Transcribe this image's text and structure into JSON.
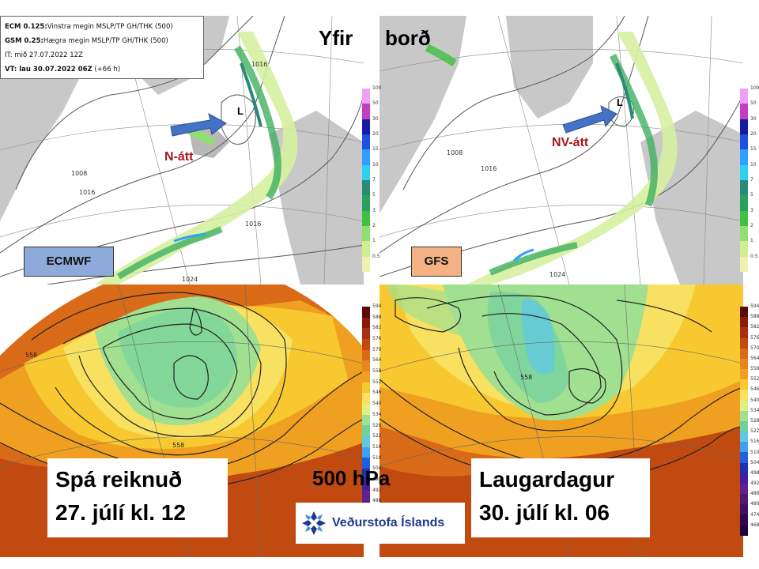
{
  "titles": {
    "surface_part1": "Yfir",
    "surface_part2": "borð",
    "upper_level": "500 hPa"
  },
  "infobox": {
    "line1_bold": "ECM 0.125:",
    "line1_rest": "Vinstra megin MSLP/TP GH/THK (500)",
    "line2_bold": "GSM 0.25:",
    "line2_rest": "Hægra megin MSLP/TP GH/THK (500)",
    "line3": "IT: mið 27.07.2022 12Z",
    "line4_bold": "VT: lau 30.07.2022 06Z",
    "line4_rest": " (+66 h)"
  },
  "models": {
    "left": "ECMWF",
    "right": "GFS"
  },
  "annotations": {
    "wind_left": "N-átt",
    "wind_right": "NV-átt",
    "low_left": "L",
    "low_right": "L"
  },
  "isobars": {
    "ecm_1016": "1016",
    "ecm_1008": "1008",
    "ecm_1024": "1024",
    "gfs_1008": "1008",
    "gfs_1016": "1016",
    "gfs_1024": "1024"
  },
  "heights": {
    "ecm_558": "558",
    "gfs_558": "558"
  },
  "run_box": {
    "line1": "Spá reiknuð",
    "line2": "27. júlí kl. 12"
  },
  "valid_box": {
    "line1": "Laugardagur",
    "line2": "30. júlí kl. 06"
  },
  "logo": {
    "text": "Veðurstofa Íslands",
    "icon": "vedurstofa-snowflake-logo-icon"
  },
  "precip_colorbar": {
    "ticks": [
      "100",
      "50",
      "30",
      "20",
      "15",
      "10",
      "7",
      "5",
      "3",
      "2",
      "1",
      "0.5"
    ],
    "colors": [
      "#f0a0f0",
      "#c040c0",
      "#1a1aa0",
      "#2050e0",
      "#30a0ff",
      "#30d0f0",
      "#2a8a7a",
      "#2aa060",
      "#40c040",
      "#90e070",
      "#d0f090",
      "#f0f0b0"
    ]
  },
  "height_colorbar_left": {
    "ticks": [
      "594",
      "588",
      "582",
      "576",
      "570",
      "564",
      "558",
      "552",
      "546",
      "540",
      "534",
      "528",
      "522",
      "516",
      "510",
      "504",
      "498",
      "492",
      "486"
    ]
  },
  "height_colorbar_right": {
    "ticks": [
      "594",
      "588",
      "582",
      "576",
      "570",
      "564",
      "558",
      "552",
      "546",
      "540",
      "534",
      "528",
      "522",
      "516",
      "510",
      "504",
      "498",
      "492",
      "486",
      "480",
      "474",
      "468"
    ]
  },
  "height_colorbar_colors": [
    "#5a0a0a",
    "#8a1a0a",
    "#a83010",
    "#c04a10",
    "#d86a18",
    "#e8861e",
    "#f0a020",
    "#f8c830",
    "#f8e060",
    "#e0f080",
    "#a0e090",
    "#70d0a0",
    "#60c8e0",
    "#40a0f0",
    "#2060e0",
    "#2030b0",
    "#4020a0",
    "#602090",
    "#501870",
    "#401060",
    "#300850",
    "#200440"
  ],
  "colors": {
    "ecmwf_label": "#8eaadb",
    "gfs_label": "#f4b183",
    "wind_text": "#a6171b",
    "arrow": "#4472c4",
    "logo_blue": "#1d3b8c"
  }
}
